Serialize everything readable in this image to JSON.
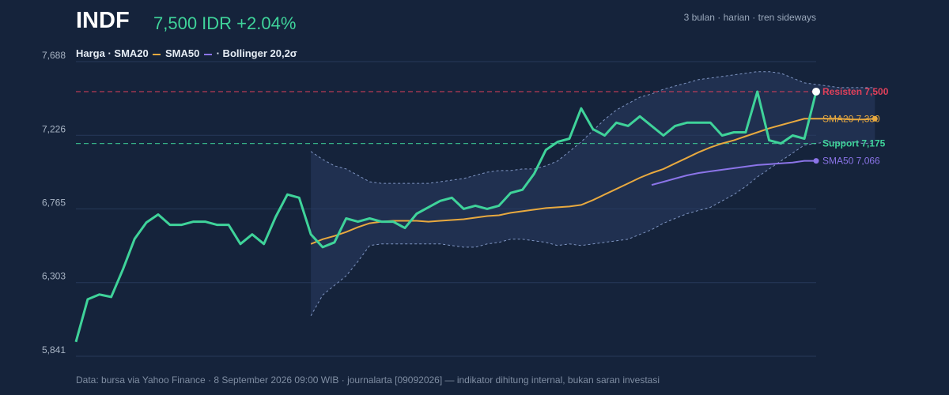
{
  "header": {
    "ticker": "INDF",
    "price_text": "7,500 IDR +2.04%",
    "meta_text": "3 bulan · harian · tren sideways"
  },
  "legend": {
    "price_label": "Harga · SMA20",
    "sma50_label": "SMA50",
    "bollinger_label": "· Bollinger 20,2σ"
  },
  "footer": {
    "text": "Data: bursa via Yahoo Finance · 8 September 2026 09:00 WIB · journalarta [09092026] — indikator dihitung internal, bukan saran investasi"
  },
  "colors": {
    "background": "#15233b",
    "price": "#3fd39a",
    "sma20": "#e8a93f",
    "sma50": "#8b74e8",
    "resistance": "#e0405a",
    "support": "#3fd39a",
    "band": "#7f95c2"
  },
  "chart_data": {
    "type": "line",
    "ylim": [
      5841,
      7688
    ],
    "yticks": [
      7688,
      7226,
      6765,
      6303,
      5841
    ],
    "ytick_labels": [
      "7,688",
      "7,226",
      "6,765",
      "6,303",
      "5,841"
    ],
    "grid": true,
    "legend_position": "top-left",
    "x_count": 64,
    "series": [
      {
        "name": "Harga",
        "start_index": 0,
        "values": [
          5931,
          6198,
          6228,
          6213,
          6385,
          6578,
          6680,
          6730,
          6665,
          6665,
          6685,
          6685,
          6665,
          6665,
          6545,
          6605,
          6545,
          6715,
          6855,
          6835,
          6605,
          6525,
          6555,
          6705,
          6685,
          6705,
          6685,
          6685,
          6645,
          6735,
          6775,
          6815,
          6835,
          6765,
          6785,
          6765,
          6785,
          6865,
          6885,
          6985,
          7135,
          7185,
          7205,
          7395,
          7265,
          7225,
          7305,
          7285,
          7345,
          7285,
          7225,
          7285,
          7305,
          7305,
          7305,
          7225,
          7245,
          7245,
          7500,
          7195,
          7175,
          7225,
          7205,
          7500
        ]
      },
      {
        "name": "SMA20",
        "start_index": 20,
        "values": [
          6545,
          6575,
          6595,
          6620,
          6650,
          6675,
          6685,
          6690,
          6690,
          6690,
          6685,
          6690,
          6695,
          6700,
          6710,
          6720,
          6725,
          6740,
          6750,
          6760,
          6770,
          6775,
          6780,
          6790,
          6820,
          6855,
          6890,
          6925,
          6960,
          6990,
          7015,
          7050,
          7085,
          7120,
          7150,
          7175,
          7195,
          7220,
          7245,
          7270,
          7290,
          7310,
          7330,
          7330,
          7330,
          7330,
          7325,
          7325,
          7330
        ],
        "end_label": "SMA20 7,330"
      },
      {
        "name": "SMA50",
        "start_index": 49,
        "values": [
          6915,
          6935,
          6955,
          6975,
          6990,
          7000,
          7010,
          7020,
          7030,
          7040,
          7045,
          7050,
          7055,
          7066,
          7066
        ],
        "end_label": "SMA50 7,066"
      },
      {
        "name": "Bollinger atas",
        "start_index": 20,
        "values": [
          7125,
          7075,
          7035,
          7015,
          6975,
          6935,
          6925,
          6925,
          6925,
          6925,
          6925,
          6935,
          6945,
          6955,
          6975,
          6995,
          7005,
          7005,
          7015,
          7015,
          7035,
          7065,
          7125,
          7185,
          7255,
          7325,
          7385,
          7425,
          7465,
          7485,
          7515,
          7535,
          7555,
          7575,
          7585,
          7595,
          7605,
          7615,
          7625,
          7625,
          7615,
          7585,
          7555,
          7545,
          7535,
          7525,
          7525,
          7525,
          7525
        ]
      },
      {
        "name": "Bollinger bawah",
        "start_index": 20,
        "values": [
          6095,
          6225,
          6285,
          6345,
          6435,
          6535,
          6545,
          6545,
          6545,
          6545,
          6545,
          6545,
          6535,
          6525,
          6525,
          6545,
          6555,
          6575,
          6575,
          6565,
          6555,
          6535,
          6545,
          6535,
          6545,
          6555,
          6565,
          6575,
          6605,
          6635,
          6675,
          6705,
          6735,
          6755,
          6775,
          6815,
          6855,
          6905,
          6965,
          7015,
          7065,
          7115,
          7165,
          7175,
          7185,
          7175,
          7185,
          7175,
          7175
        ]
      }
    ],
    "levels": [
      {
        "name": "Resisten",
        "value": 7500,
        "label": "Resisten 7,500"
      },
      {
        "name": "Support",
        "value": 7175,
        "label": "Support 7,175"
      }
    ]
  }
}
